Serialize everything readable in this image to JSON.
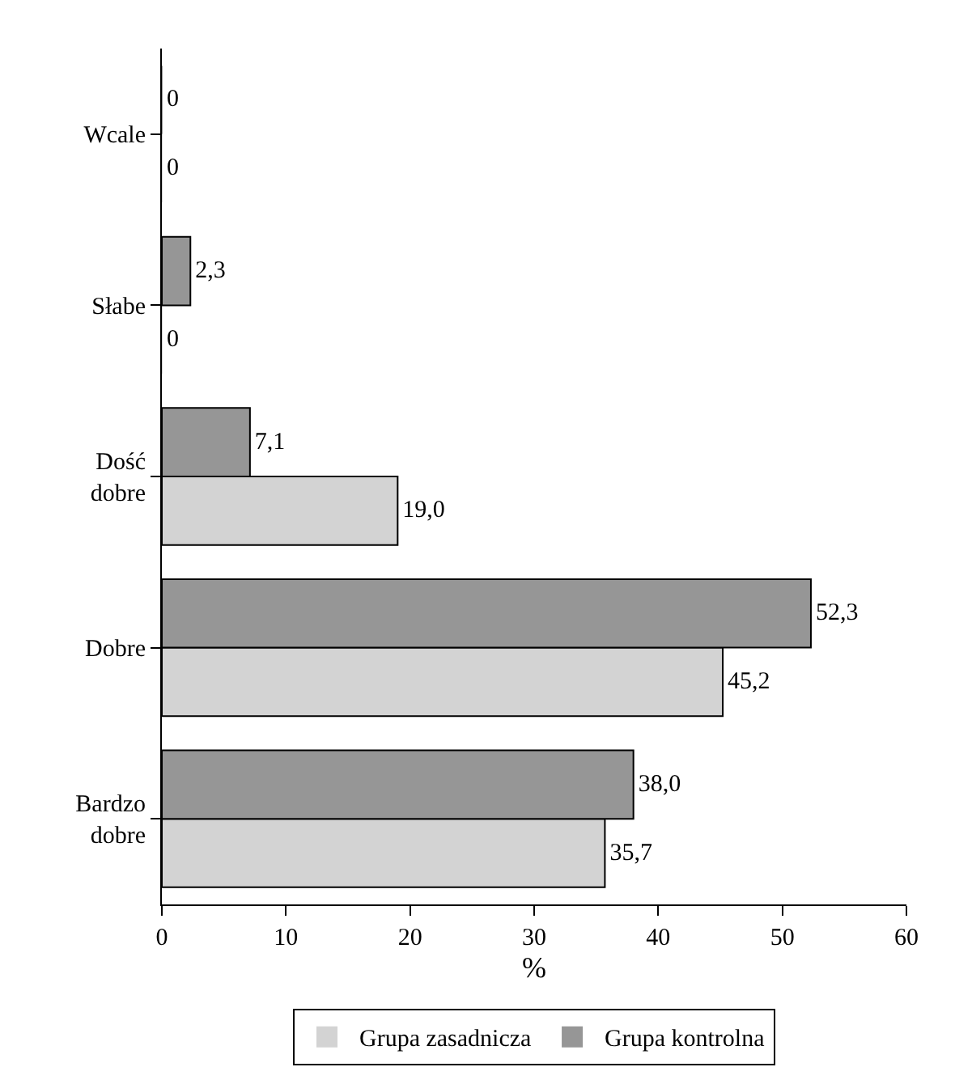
{
  "chart_data": {
    "type": "bar",
    "orientation": "horizontal",
    "categories": [
      "Wcale",
      "Słabe",
      "Dość dobre",
      "Dobre",
      "Bardzo dobre"
    ],
    "series": [
      {
        "name": "Grupa zasadnicza",
        "color": "#d3d3d3",
        "values": [
          0,
          0,
          19.0,
          45.2,
          35.7
        ],
        "value_labels": [
          "0",
          "0",
          "19,0",
          "45,2",
          "35,7"
        ]
      },
      {
        "name": "Grupa kontrolna",
        "color": "#969696",
        "values": [
          0,
          2.3,
          7.1,
          52.3,
          38.0
        ],
        "value_labels": [
          "0",
          "2,3",
          "7,1",
          "52,3",
          "38,0"
        ]
      }
    ],
    "xlabel": "%",
    "xlim": [
      0,
      60
    ],
    "xticks": [
      0,
      10,
      20,
      30,
      40,
      50,
      60
    ],
    "grid": false,
    "legend": "bottom"
  }
}
